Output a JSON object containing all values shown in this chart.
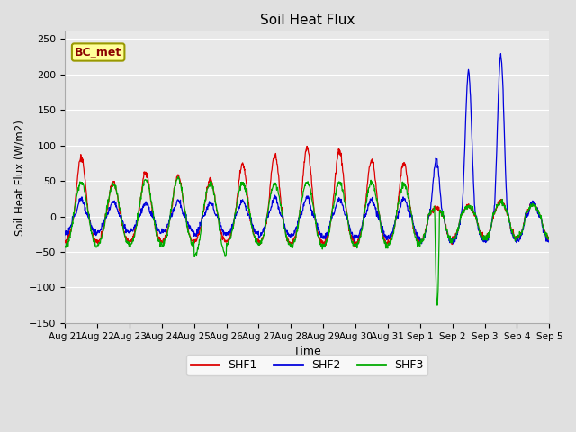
{
  "title": "Soil Heat Flux",
  "xlabel": "Time",
  "ylabel": "Soil Heat Flux (W/m2)",
  "ylim": [
    -150,
    260
  ],
  "yticks": [
    -150,
    -100,
    -50,
    0,
    50,
    100,
    150,
    200,
    250
  ],
  "fig_bg_color": "#e0e0e0",
  "plot_bg_color": "#e8e8e8",
  "shf1_color": "#dd0000",
  "shf2_color": "#0000dd",
  "shf3_color": "#00aa00",
  "grid_color": "#cccccc",
  "annotation_text": "BC_met",
  "annotation_bg": "#ffff99",
  "annotation_border": "#999900",
  "legend_labels": [
    "SHF1",
    "SHF2",
    "SHF3"
  ],
  "x_tick_labels": [
    "Aug 21",
    "Aug 22",
    "Aug 23",
    "Aug 24",
    "Aug 25",
    "Aug 26",
    "Aug 27",
    "Aug 28",
    "Aug 29",
    "Aug 30",
    "Aug 31",
    "Sep 1",
    "Sep 2",
    "Sep 3",
    "Sep 4",
    "Sep 5"
  ],
  "n_days": 15,
  "points_per_day": 96
}
